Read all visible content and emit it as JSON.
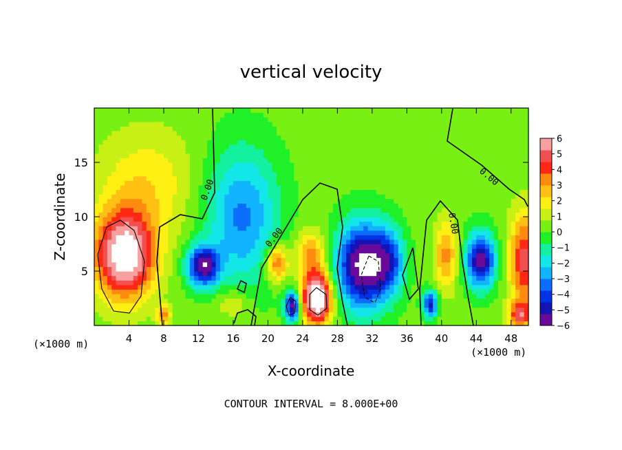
{
  "chart_data": {
    "type": "heatmap",
    "title": "vertical velocity",
    "xlabel": "X-coordinate",
    "ylabel": "Z-coordinate",
    "x_units_left": "(×1000 m)",
    "x_units_right": "(×1000 m)",
    "footer": "CONTOUR INTERVAL = 8.000E+00",
    "xlim": [
      0,
      50
    ],
    "ylim": [
      0,
      20
    ],
    "x_ticks": [
      4,
      8,
      12,
      16,
      20,
      24,
      28,
      32,
      36,
      40,
      44,
      48
    ],
    "y_ticks": [
      5,
      10,
      15
    ],
    "contour_label": "0.00",
    "colorbar": {
      "range": [
        -6,
        6
      ],
      "ticks": [
        "6",
        "5",
        "4",
        "3",
        "2",
        "1",
        "0",
        "−1",
        "−2",
        "−3",
        "−4",
        "−5",
        "−6"
      ],
      "colors": [
        "#6a0a9a",
        "#1414b4",
        "#0032e6",
        "#0a6efa",
        "#12b4ff",
        "#12e6e6",
        "#12f0a0",
        "#20f028",
        "#78f014",
        "#c8f014",
        "#fff014",
        "#ffc014",
        "#ff8a10",
        "#ff2814",
        "#f05050",
        "#f8a0a0"
      ]
    },
    "features": [
      {
        "x": 3.5,
        "z": 6.5,
        "w": 7,
        "sx": 2.4,
        "sz": 2.8
      },
      {
        "x": 12.5,
        "z": 5.5,
        "w": -6,
        "sx": 1.3,
        "sz": 1.3
      },
      {
        "x": 17,
        "z": 10,
        "w": -3.5,
        "sx": 3.0,
        "sz": 4.5
      },
      {
        "x": 21,
        "z": 5.8,
        "w": 4,
        "sx": 0.9,
        "sz": 1.2
      },
      {
        "x": 22.8,
        "z": 1.8,
        "w": -6,
        "sx": 0.6,
        "sz": 1.0
      },
      {
        "x": 25.7,
        "z": 2.5,
        "w": 8,
        "sx": 1.2,
        "sz": 1.6
      },
      {
        "x": 25,
        "z": 6.5,
        "w": 3,
        "sx": 1.2,
        "sz": 1.6
      },
      {
        "x": 31,
        "z": 5.5,
        "w": -7,
        "sx": 2.2,
        "sz": 2.8
      },
      {
        "x": 38.7,
        "z": 2.0,
        "w": -5,
        "sx": 0.6,
        "sz": 0.9
      },
      {
        "x": 40.5,
        "z": 6.5,
        "w": 3,
        "sx": 0.9,
        "sz": 2.2
      },
      {
        "x": 44.5,
        "z": 6.0,
        "w": -6,
        "sx": 1.2,
        "sz": 1.8
      },
      {
        "x": 49.5,
        "z": 6.0,
        "w": 4.5,
        "sx": 1.2,
        "sz": 3.0
      },
      {
        "x": 49,
        "z": 1.0,
        "w": 4,
        "sx": 0.9,
        "sz": 0.9
      },
      {
        "x": 8,
        "z": 1.0,
        "w": 3,
        "sx": 0.6,
        "sz": 0.6
      },
      {
        "x": 6,
        "z": 13,
        "w": 1.8,
        "sx": 4.0,
        "sz": 3.5
      },
      {
        "x": 34,
        "z": 6.0,
        "w": -3,
        "sx": 1.2,
        "sz": 2.0
      },
      {
        "x": 16,
        "z": 2.0,
        "w": 1.5,
        "sx": 1.5,
        "sz": 1.0
      }
    ]
  }
}
